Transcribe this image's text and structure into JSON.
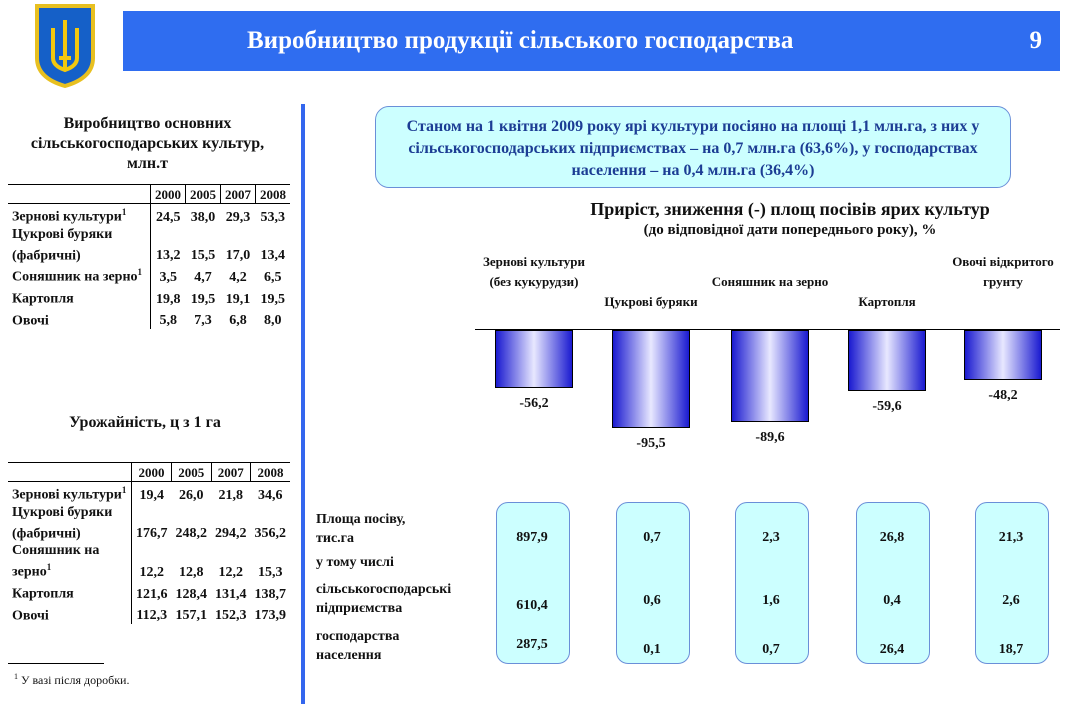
{
  "header": {
    "title": "Виробництво продукції сільського господарства",
    "page": "9"
  },
  "colors": {
    "header": "#2f6df0",
    "info_bg": "#ccffff",
    "bar": "#1a1ad0"
  },
  "production": {
    "title": "Виробництво основних сільськогосподарських культур, млн.т",
    "years": [
      "2000",
      "2005",
      "2007",
      "2008"
    ],
    "rows": [
      {
        "label": "Зернові культури",
        "sup": "1",
        "values": [
          "24,5",
          "38,0",
          "29,3",
          "53,3"
        ]
      },
      {
        "label": "Цукрові буряки (фабричні)",
        "sup": "",
        "values": [
          "13,2",
          "15,5",
          "17,0",
          "13,4"
        ]
      },
      {
        "label": "Соняшник на зерно",
        "sup": "1",
        "values": [
          "3,5",
          "4,7",
          "4,2",
          "6,5"
        ]
      },
      {
        "label": "Картопля",
        "sup": "",
        "values": [
          "19,8",
          "19,5",
          "19,1",
          "19,5"
        ]
      },
      {
        "label": "Овочі",
        "sup": "",
        "values": [
          "5,8",
          "7,3",
          "6,8",
          "8,0"
        ]
      }
    ]
  },
  "yield": {
    "title": "Урожайність, ц з 1 га",
    "years": [
      "2000",
      "2005",
      "2007",
      "2008"
    ],
    "rows": [
      {
        "label": "Зернові культури",
        "sup": "1",
        "values": [
          "19,4",
          "26,0",
          "21,8",
          "34,6"
        ]
      },
      {
        "label": "Цукрові буряки (фабричні)",
        "sup": "",
        "values": [
          "176,7",
          "248,2",
          "294,2",
          "356,2"
        ]
      },
      {
        "label": "Соняшник на зерно",
        "sup": "1",
        "values": [
          "12,2",
          "12,8",
          "12,2",
          "15,3"
        ]
      },
      {
        "label": "Картопля",
        "sup": "",
        "values": [
          "121,6",
          "128,4",
          "131,4",
          "138,7"
        ]
      },
      {
        "label": "Овочі",
        "sup": "",
        "values": [
          "112,3",
          "157,1",
          "152,3",
          "173,9"
        ]
      }
    ]
  },
  "footnote": {
    "sup": "1",
    "text": " У вазі після доробки."
  },
  "info": "Станом на 1 квітня 2009 року ярі культури посіяно на площі 1,1 млн.га, з них у сільськогосподарських підприємствах – на 0,7 млн.га (63,6%), у господарствах населення – на 0,4 млн.га (36,4%)",
  "chart_data": {
    "type": "bar",
    "title": "Приріст, зниження (-) площ посівів ярих культур",
    "subtitle": "(до відповідної дати попереднього року), %",
    "categories": [
      "Зернові культури (без кукурудзи)",
      "Цукрові буряки",
      "Соняшник на зерно",
      "Картопля",
      "Овочі відкритого грунту"
    ],
    "values": [
      -56.2,
      -95.5,
      -89.6,
      -59.6,
      -48.2
    ],
    "labels": [
      "-56,2",
      "-95,5",
      "-89,6",
      "-59,6",
      "-48,2"
    ],
    "ylim": [
      -100,
      0
    ]
  },
  "area": {
    "row_labels": [
      "Площа посіву, тис.га",
      "у тому числі",
      "сільськогосподарські підприємства",
      "господарства населення"
    ],
    "columns": [
      {
        "total": "897,9",
        "enterprises": "610,4",
        "households": "287,5"
      },
      {
        "total": "0,7",
        "enterprises": "0,6",
        "households": "0,1"
      },
      {
        "total": "2,3",
        "enterprises": "1,6",
        "households": "0,7"
      },
      {
        "total": "26,8",
        "enterprises": "0,4",
        "households": "26,4"
      },
      {
        "total": "21,3",
        "enterprises": "2,6",
        "households": "18,7"
      }
    ]
  }
}
